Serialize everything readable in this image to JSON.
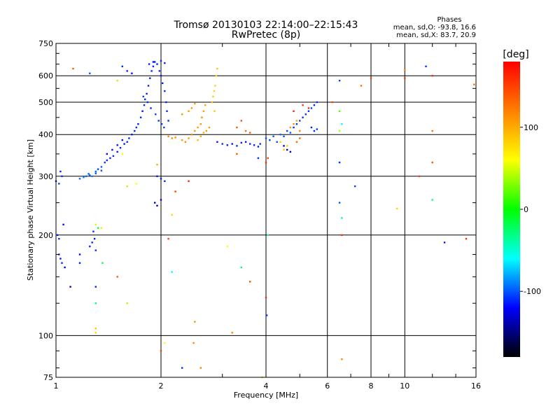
{
  "chart_data": {
    "type": "scatter",
    "title": "Tromsø 20130103 22:14:00–22:15:43",
    "subtitle": "RwPretec (8p)",
    "xlabel": "Frequency [MHz]",
    "ylabel": "Stationary phase Virtual Height [km]",
    "x_scale": "log",
    "y_scale": "log",
    "xlim": [
      1,
      16
    ],
    "ylim": [
      75,
      750
    ],
    "x_ticks": [
      1,
      2,
      4,
      6,
      8,
      10,
      16
    ],
    "x_tick_labels": [
      "1",
      "2",
      "4",
      "6",
      "8",
      "10",
      "16"
    ],
    "y_ticks": [
      75,
      100,
      200,
      300,
      400,
      500,
      600,
      750
    ],
    "y_tick_labels": [
      "75",
      "100",
      "200",
      "300",
      "400",
      "500",
      "600",
      "750"
    ],
    "grid": true,
    "stats": {
      "heading": "Phases",
      "o_line": "mean, sd,O: -93.8, 16.6",
      "x_line": "mean, sd,X: 83.7, 20.9"
    },
    "colorbar": {
      "label": "[deg]",
      "range": [
        -180,
        180
      ],
      "ticks": [
        100,
        0,
        -100
      ],
      "tick_labels": [
        "100",
        "0",
        "-100"
      ],
      "colors": [
        "#ff0000",
        "#ff8000",
        "#ffff00",
        "#00ff00",
        "#00ffff",
        "#0000ff",
        "#000000"
      ]
    },
    "series": [
      {
        "points": [
          [
            1.0,
            290,
            -110
          ],
          [
            1.02,
            285,
            -105
          ],
          [
            1.04,
            300,
            -108
          ],
          [
            1.03,
            310,
            -112
          ],
          [
            1.01,
            200,
            -115
          ],
          [
            1.02,
            195,
            -110
          ],
          [
            1.05,
            215,
            -118
          ],
          [
            1.03,
            170,
            -115
          ],
          [
            1.04,
            165,
            -110
          ],
          [
            1.06,
            160,
            -120
          ],
          [
            1.02,
            175,
            -112
          ],
          [
            1.1,
            140,
            -130
          ],
          [
            1.17,
            165,
            -115
          ],
          [
            1.17,
            175,
            -118
          ],
          [
            1.25,
            185,
            -112
          ],
          [
            1.27,
            190,
            -110
          ],
          [
            1.29,
            195,
            -115
          ],
          [
            1.3,
            180,
            -108
          ],
          [
            1.28,
            205,
            -110
          ],
          [
            1.17,
            295,
            -95
          ],
          [
            1.2,
            298,
            -90
          ],
          [
            1.22,
            300,
            -95
          ],
          [
            1.24,
            305,
            -100
          ],
          [
            1.27,
            300,
            -90
          ],
          [
            1.3,
            310,
            -95
          ],
          [
            1.32,
            315,
            -105
          ],
          [
            1.35,
            320,
            -100
          ],
          [
            1.38,
            330,
            -108
          ],
          [
            1.4,
            335,
            -110
          ],
          [
            1.43,
            340,
            -112
          ],
          [
            1.46,
            345,
            -110
          ],
          [
            1.5,
            355,
            -115
          ],
          [
            1.53,
            365,
            -112
          ],
          [
            1.57,
            375,
            -115
          ],
          [
            1.6,
            380,
            -110
          ],
          [
            1.62,
            390,
            -112
          ],
          [
            1.65,
            400,
            -115
          ],
          [
            1.68,
            410,
            -112
          ],
          [
            1.7,
            420,
            -110
          ],
          [
            1.72,
            430,
            -114
          ],
          [
            1.75,
            450,
            -112
          ],
          [
            1.77,
            470,
            -115
          ],
          [
            1.79,
            490,
            -110
          ],
          [
            1.8,
            510,
            -112
          ],
          [
            1.82,
            530,
            -114
          ],
          [
            1.84,
            560,
            -112
          ],
          [
            1.86,
            590,
            -115
          ],
          [
            1.88,
            620,
            -110
          ],
          [
            1.9,
            640,
            -112
          ],
          [
            1.92,
            660,
            -115
          ],
          [
            1.95,
            650,
            -112
          ],
          [
            1.98,
            620,
            -110
          ],
          [
            2.0,
            600,
            -112
          ],
          [
            2.02,
            570,
            -115
          ],
          [
            2.05,
            540,
            -110
          ],
          [
            2.07,
            500,
            -112
          ],
          [
            2.08,
            470,
            -110
          ],
          [
            2.1,
            440,
            -112
          ],
          [
            1.55,
            640,
            -110
          ],
          [
            1.6,
            620,
            -112
          ],
          [
            1.65,
            610,
            -115
          ],
          [
            1.85,
            650,
            -112
          ],
          [
            1.9,
            660,
            -115
          ],
          [
            2.0,
            665,
            -110
          ],
          [
            2.05,
            655,
            -112
          ],
          [
            1.78,
            520,
            -105
          ],
          [
            1.83,
            500,
            -108
          ],
          [
            1.87,
            480,
            -110
          ],
          [
            1.93,
            460,
            -105
          ],
          [
            1.97,
            440,
            -110
          ],
          [
            2.01,
            430,
            -108
          ],
          [
            2.04,
            420,
            -105
          ],
          [
            1.4,
            350,
            -120
          ],
          [
            1.45,
            360,
            -118
          ],
          [
            1.5,
            372,
            -115
          ],
          [
            1.55,
            385,
            -118
          ],
          [
            1.25,
            302,
            -100
          ],
          [
            1.3,
            306,
            -100
          ],
          [
            1.35,
            312,
            -102
          ],
          [
            1.95,
            300,
            -115
          ],
          [
            2.0,
            295,
            -112
          ],
          [
            2.05,
            290,
            -110
          ],
          [
            1.92,
            250,
            -130
          ],
          [
            1.95,
            245,
            -125
          ],
          [
            2.0,
            255,
            -128
          ],
          [
            2.1,
            395,
            120
          ],
          [
            2.15,
            390,
            115
          ],
          [
            2.2,
            392,
            118
          ],
          [
            2.3,
            385,
            110
          ],
          [
            2.35,
            380,
            115
          ],
          [
            2.4,
            390,
            110
          ],
          [
            2.45,
            400,
            115
          ],
          [
            2.5,
            410,
            110
          ],
          [
            2.55,
            420,
            105
          ],
          [
            2.6,
            430,
            110
          ],
          [
            2.62,
            450,
            115
          ],
          [
            2.65,
            470,
            110
          ],
          [
            2.68,
            490,
            105
          ],
          [
            2.4,
            470,
            108
          ],
          [
            2.45,
            480,
            110
          ],
          [
            2.5,
            495,
            105
          ],
          [
            2.3,
            460,
            112
          ],
          [
            2.8,
            500,
            90
          ],
          [
            2.82,
            520,
            85
          ],
          [
            2.84,
            540,
            80
          ],
          [
            2.86,
            560,
            82
          ],
          [
            2.88,
            600,
            80
          ],
          [
            2.9,
            630,
            85
          ],
          [
            2.85,
            470,
            88
          ],
          [
            2.7,
            410,
            110
          ],
          [
            2.75,
            420,
            105
          ],
          [
            2.5,
            110,
            110
          ],
          [
            2.48,
            95,
            115
          ],
          [
            2.9,
            380,
            -115
          ],
          [
            3.0,
            375,
            -110
          ],
          [
            3.1,
            372,
            -112
          ],
          [
            3.2,
            375,
            -115
          ],
          [
            3.3,
            370,
            -110
          ],
          [
            3.4,
            378,
            -112
          ],
          [
            3.5,
            380,
            -115
          ],
          [
            3.6,
            375,
            -110
          ],
          [
            3.7,
            372,
            -112
          ],
          [
            3.8,
            368,
            -115
          ],
          [
            3.85,
            375,
            -110
          ],
          [
            3.3,
            420,
            140
          ],
          [
            3.4,
            440,
            145
          ],
          [
            3.5,
            410,
            130
          ],
          [
            3.6,
            405,
            135
          ],
          [
            2.55,
            385,
            95
          ],
          [
            2.6,
            395,
            100
          ],
          [
            2.65,
            405,
            98
          ],
          [
            4.0,
            390,
            -100
          ],
          [
            4.1,
            385,
            -105
          ],
          [
            4.2,
            395,
            -100
          ],
          [
            4.3,
            380,
            -102
          ],
          [
            4.4,
            400,
            -95
          ],
          [
            4.5,
            395,
            -100
          ],
          [
            4.6,
            410,
            -105
          ],
          [
            4.7,
            405,
            -100
          ],
          [
            4.8,
            420,
            -110
          ],
          [
            4.9,
            430,
            -108
          ],
          [
            5.0,
            440,
            -105
          ],
          [
            5.1,
            450,
            -110
          ],
          [
            5.2,
            460,
            -108
          ],
          [
            5.3,
            470,
            -110
          ],
          [
            5.4,
            480,
            -105
          ],
          [
            5.5,
            490,
            -110
          ],
          [
            5.6,
            500,
            -108
          ],
          [
            5.4,
            420,
            -112
          ],
          [
            5.5,
            410,
            -110
          ],
          [
            5.6,
            415,
            -108
          ],
          [
            4.5,
            370,
            -130
          ],
          [
            4.6,
            360,
            -135
          ],
          [
            4.7,
            355,
            -130
          ],
          [
            4.5,
            360,
            90
          ],
          [
            4.6,
            370,
            85
          ],
          [
            4.4,
            380,
            80
          ],
          [
            4.7,
            420,
            110
          ],
          [
            4.8,
            430,
            115
          ],
          [
            4.9,
            440,
            105
          ],
          [
            5.0,
            410,
            120
          ],
          [
            4.9,
            380,
            130
          ],
          [
            5.0,
            390,
            135
          ],
          [
            5.1,
            490,
            155
          ],
          [
            5.3,
            480,
            160
          ],
          [
            4.8,
            470,
            165
          ],
          [
            4.0,
            330,
            160
          ],
          [
            4.05,
            340,
            150
          ],
          [
            4.0,
            130,
            160
          ],
          [
            4.02,
            115,
            -110
          ],
          [
            4.05,
            200,
            -40
          ],
          [
            6.2,
            500,
            150
          ],
          [
            6.5,
            470,
            20
          ],
          [
            6.6,
            430,
            -60
          ],
          [
            6.5,
            410,
            40
          ],
          [
            6.5,
            330,
            -110
          ],
          [
            6.5,
            250,
            -100
          ],
          [
            6.6,
            225,
            -30
          ],
          [
            6.6,
            200,
            160
          ],
          [
            6.5,
            580,
            -105
          ],
          [
            6.6,
            85,
            120
          ],
          [
            7.2,
            280,
            -105
          ],
          [
            7.5,
            560,
            130
          ],
          [
            8.0,
            590,
            150
          ],
          [
            9.5,
            240,
            80
          ],
          [
            10.0,
            590,
            155
          ],
          [
            10.0,
            625,
            120
          ],
          [
            11.0,
            300,
            150
          ],
          [
            11.5,
            640,
            -110
          ],
          [
            12.0,
            600,
            160
          ],
          [
            12.0,
            410,
            130
          ],
          [
            12.0,
            330,
            140
          ],
          [
            12.0,
            255,
            -30
          ],
          [
            13.0,
            190,
            -115
          ],
          [
            15.0,
            195,
            160
          ],
          [
            15.8,
            565,
            130
          ],
          [
            1.12,
            630,
            140
          ],
          [
            1.25,
            610,
            -100
          ],
          [
            1.5,
            580,
            40
          ],
          [
            1.6,
            280,
            40
          ],
          [
            1.7,
            285,
            60
          ],
          [
            1.55,
            350,
            60
          ],
          [
            1.3,
            215,
            50
          ],
          [
            1.32,
            210,
            -20
          ],
          [
            1.35,
            210,
            70
          ],
          [
            1.36,
            165,
            -20
          ],
          [
            1.5,
            150,
            140
          ],
          [
            1.3,
            140,
            -110
          ],
          [
            1.3,
            125,
            -30
          ],
          [
            1.3,
            105,
            90
          ],
          [
            1.3,
            102,
            80
          ],
          [
            1.6,
            125,
            40
          ],
          [
            2.1,
            195,
            150
          ],
          [
            2.15,
            155,
            -60
          ],
          [
            2.15,
            230,
            80
          ],
          [
            2.2,
            270,
            150
          ],
          [
            2.3,
            80,
            -110
          ],
          [
            1.95,
            325,
            100
          ],
          [
            2.0,
            90,
            150
          ],
          [
            2.05,
            95,
            60
          ],
          [
            2.4,
            290,
            160
          ],
          [
            2.6,
            80,
            120
          ],
          [
            3.1,
            185,
            60
          ],
          [
            3.2,
            102,
            120
          ],
          [
            3.4,
            160,
            -30
          ],
          [
            3.6,
            145,
            140
          ],
          [
            3.9,
            75,
            80
          ],
          [
            3.8,
            340,
            -110
          ],
          [
            3.3,
            350,
            140
          ]
        ]
      }
    ]
  }
}
